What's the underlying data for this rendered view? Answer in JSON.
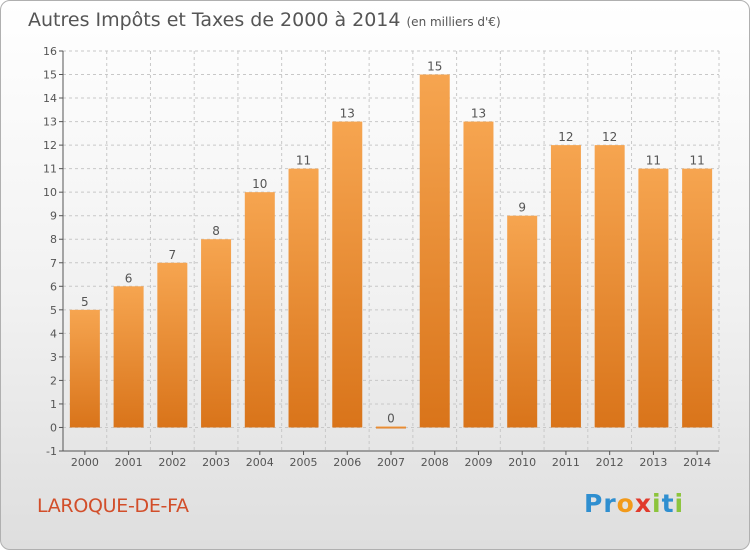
{
  "title": "Autres Impôts et Taxes de 2000 à 2014",
  "subtitle": "(en milliers d'€)",
  "commune": "LAROQUE-DE-FA",
  "logo": {
    "letters": [
      "P",
      "r",
      "o",
      "x",
      "i",
      "t",
      "i"
    ],
    "colors": [
      "#2f8fd0",
      "#2f8fd0",
      "#f29a1a",
      "#e13a2c",
      "#8cc43c",
      "#2f8fd0",
      "#8cc43c"
    ]
  },
  "colors": {
    "bar_top": "#f6a550",
    "bar_bottom": "#d9741a",
    "axis": "#555555",
    "grid": "#c8c8c8",
    "title": "#555555",
    "commune": "#d24e2a"
  },
  "chart_data": {
    "type": "bar",
    "title": "Autres Impôts et Taxes de 2000 à 2014",
    "subtitle": "(en milliers d'€)",
    "xlabel": "",
    "ylabel": "",
    "categories": [
      "2000",
      "2001",
      "2002",
      "2003",
      "2004",
      "2005",
      "2006",
      "2007",
      "2008",
      "2009",
      "2010",
      "2011",
      "2012",
      "2013",
      "2014"
    ],
    "values": [
      5,
      6,
      7,
      8,
      10,
      11,
      13,
      0,
      15,
      13,
      9,
      12,
      12,
      11,
      11
    ],
    "data_labels": [
      "5",
      "6",
      "7",
      "8",
      "10",
      "11",
      "13",
      "0",
      "15",
      "13",
      "9",
      "12",
      "12",
      "11",
      "11"
    ],
    "ylim": [
      -1,
      16
    ],
    "yticks": [
      "-1",
      "0",
      "1",
      "2",
      "3",
      "4",
      "5",
      "6",
      "7",
      "8",
      "9",
      "10",
      "11",
      "12",
      "13",
      "14",
      "15",
      "16"
    ],
    "grid": true
  }
}
